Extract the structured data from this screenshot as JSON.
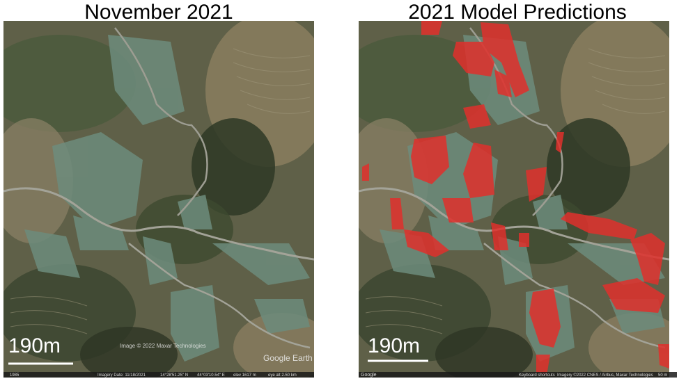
{
  "panels": [
    {
      "title": "November 2021",
      "scale_label": "190m",
      "watermark": "Google Earth",
      "attribution": "Image © 2022 Maxar Technologies",
      "footer": [
        "1985",
        "Imagery Date: 11/18/2021",
        "14°28'51.25\" N",
        "44°03'10.54\" E",
        "elev 1617 m",
        "eye alt 2.50 km"
      ]
    },
    {
      "title": "2021 Model Predictions",
      "scale_label": "190m",
      "logo": "Google",
      "footer": [
        "Keyboard shortcuts",
        "Imagery ©2022 CNES / Airbus, Maxar Technologies",
        "50 m"
      ]
    }
  ]
}
